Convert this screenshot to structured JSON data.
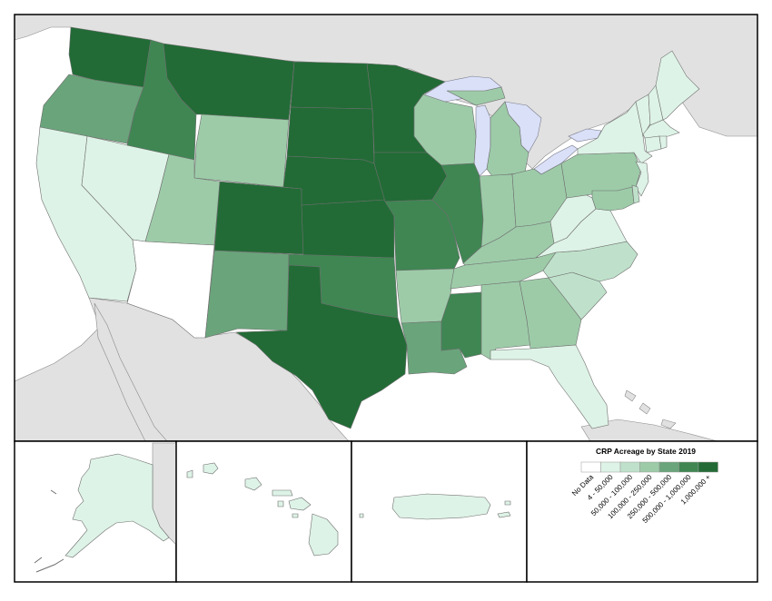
{
  "legend": {
    "title": "CRP Acreage by State 2019",
    "classes": [
      {
        "label": "No Data",
        "color": "#ffffff"
      },
      {
        "label": "4 - 50,000",
        "color": "#def3e7"
      },
      {
        "label": "50,000 - 100,000",
        "color": "#bfe1cb"
      },
      {
        "label": "100,000 - 250,000",
        "color": "#9dcba8"
      },
      {
        "label": "250,000 - 500,000",
        "color": "#6aa47b"
      },
      {
        "label": "500,000 - 1,000,000",
        "color": "#3f8653"
      },
      {
        "label": "1,000,000 +",
        "color": "#226b36"
      }
    ]
  },
  "colors": {
    "background_land": "#e1e1e1",
    "water": "#d9e0f7",
    "border": "#000000",
    "state_line": "#6f6f6f"
  },
  "states": [
    {
      "name": "WA",
      "class": 6
    },
    {
      "name": "OR",
      "class": 4
    },
    {
      "name": "CA",
      "class": 1
    },
    {
      "name": "ID",
      "class": 5
    },
    {
      "name": "NV",
      "class": 1
    },
    {
      "name": "MT",
      "class": 6
    },
    {
      "name": "WY",
      "class": 3
    },
    {
      "name": "UT",
      "class": 3
    },
    {
      "name": "AZ",
      "class": 0
    },
    {
      "name": "CO",
      "class": 6
    },
    {
      "name": "NM",
      "class": 4
    },
    {
      "name": "ND",
      "class": 6
    },
    {
      "name": "SD",
      "class": 6
    },
    {
      "name": "NE",
      "class": 6
    },
    {
      "name": "KS",
      "class": 6
    },
    {
      "name": "OK",
      "class": 5
    },
    {
      "name": "TX",
      "class": 6
    },
    {
      "name": "MN",
      "class": 6
    },
    {
      "name": "IA",
      "class": 6
    },
    {
      "name": "MO",
      "class": 5
    },
    {
      "name": "AR",
      "class": 3
    },
    {
      "name": "LA",
      "class": 4
    },
    {
      "name": "WI",
      "class": 3
    },
    {
      "name": "IL",
      "class": 5
    },
    {
      "name": "MS",
      "class": 5
    },
    {
      "name": "MI",
      "class": 3
    },
    {
      "name": "IN",
      "class": 3
    },
    {
      "name": "OH",
      "class": 3
    },
    {
      "name": "KY",
      "class": 3
    },
    {
      "name": "TN",
      "class": 3
    },
    {
      "name": "AL",
      "class": 3
    },
    {
      "name": "GA",
      "class": 3
    },
    {
      "name": "FL",
      "class": 1
    },
    {
      "name": "SC",
      "class": 2
    },
    {
      "name": "NC",
      "class": 2
    },
    {
      "name": "VA",
      "class": 1
    },
    {
      "name": "WV",
      "class": 1
    },
    {
      "name": "PA",
      "class": 3
    },
    {
      "name": "NY",
      "class": 1
    },
    {
      "name": "NJ",
      "class": 1
    },
    {
      "name": "MD",
      "class": 3
    },
    {
      "name": "DE",
      "class": 2
    },
    {
      "name": "VT",
      "class": 1
    },
    {
      "name": "NH",
      "class": 1
    },
    {
      "name": "ME",
      "class": 1
    },
    {
      "name": "MA",
      "class": 1
    },
    {
      "name": "CT",
      "class": 1
    },
    {
      "name": "RI",
      "class": 1
    },
    {
      "name": "AK",
      "class": 1
    },
    {
      "name": "HI",
      "class": 1
    },
    {
      "name": "PR",
      "class": 1
    }
  ]
}
